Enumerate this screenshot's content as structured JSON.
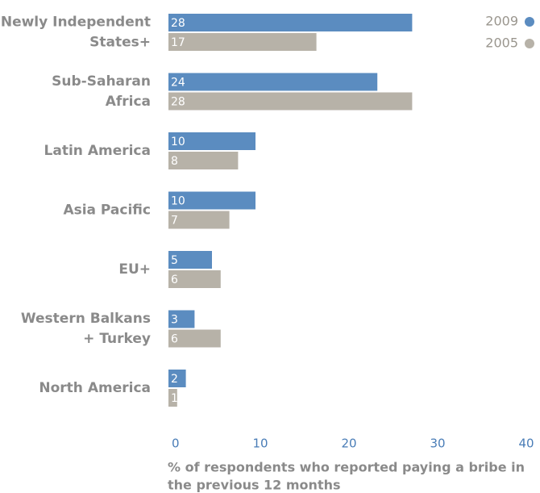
{
  "chart_data": {
    "type": "bar",
    "orientation": "horizontal",
    "categories": [
      [
        "Newly Independent",
        "States+"
      ],
      [
        "Sub-Saharan",
        "Africa"
      ],
      [
        "Latin America"
      ],
      [
        "Asia Pacific"
      ],
      [
        "EU+"
      ],
      [
        "Western Balkans",
        "+ Turkey"
      ],
      [
        "North America"
      ]
    ],
    "series": [
      {
        "name": "2009",
        "color": "#5b8cc0",
        "values": [
          28,
          24,
          10,
          10,
          5,
          3,
          2
        ]
      },
      {
        "name": "2005",
        "color": "#b7b2a8",
        "values": [
          17,
          28,
          8,
          7,
          6,
          6,
          1
        ]
      }
    ],
    "xlim": [
      0,
      40
    ],
    "xticks": [
      0,
      10,
      20,
      30,
      40
    ],
    "x_label": [
      "% of respondents who reported paying a bribe in",
      "the previous 12 months"
    ],
    "legend": "top-right"
  }
}
